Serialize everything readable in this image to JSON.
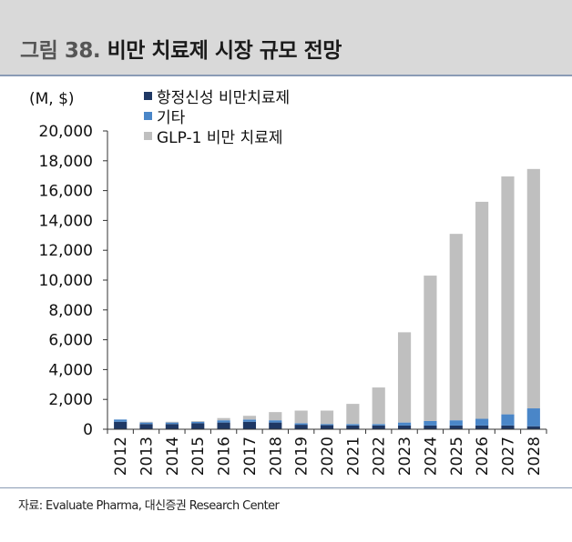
{
  "header": {
    "figure_label": "그림 38.",
    "title": "비만 치료제 시장 규모 전망"
  },
  "source": "자료: Evaluate Pharma, 대신증권 Research Center",
  "colors": {
    "series_1": "#1f3864",
    "series_2": "#4a86c8",
    "series_3": "#bfbfbf",
    "header_bg": "#d9d9d9"
  },
  "chart_data": {
    "type": "bar",
    "stacked": true,
    "unit_label": "(M, $)",
    "title": "",
    "xlabel": "",
    "ylabel": "",
    "ylim": [
      0,
      20000
    ],
    "yticks": [
      "0",
      "2,000",
      "4,000",
      "6,000",
      "8,000",
      "10,000",
      "12,000",
      "14,000",
      "16,000",
      "18,000",
      "20,000"
    ],
    "grid": false,
    "legend_position": "top-left",
    "categories": [
      "2012",
      "2013",
      "2014",
      "2015",
      "2016",
      "2017",
      "2018",
      "2019",
      "2020",
      "2021",
      "2022",
      "2023",
      "2024",
      "2025",
      "2026",
      "2027",
      "2028"
    ],
    "series": [
      {
        "name": "항정신성 비만치료제",
        "color": "#1f3864",
        "values": [
          500,
          350,
          350,
          400,
          450,
          500,
          450,
          300,
          270,
          250,
          250,
          250,
          250,
          250,
          250,
          250,
          200
        ]
      },
      {
        "name": "기타",
        "color": "#4a86c8",
        "values": [
          150,
          100,
          100,
          100,
          150,
          150,
          150,
          100,
          80,
          100,
          100,
          200,
          300,
          350,
          450,
          750,
          1200
        ]
      },
      {
        "name": "GLP-1 비만 치료제",
        "color": "#bfbfbf",
        "values": [
          0,
          50,
          50,
          50,
          150,
          250,
          550,
          850,
          900,
          1350,
          2450,
          6050,
          9750,
          12500,
          14550,
          15950,
          16050
        ]
      }
    ]
  }
}
